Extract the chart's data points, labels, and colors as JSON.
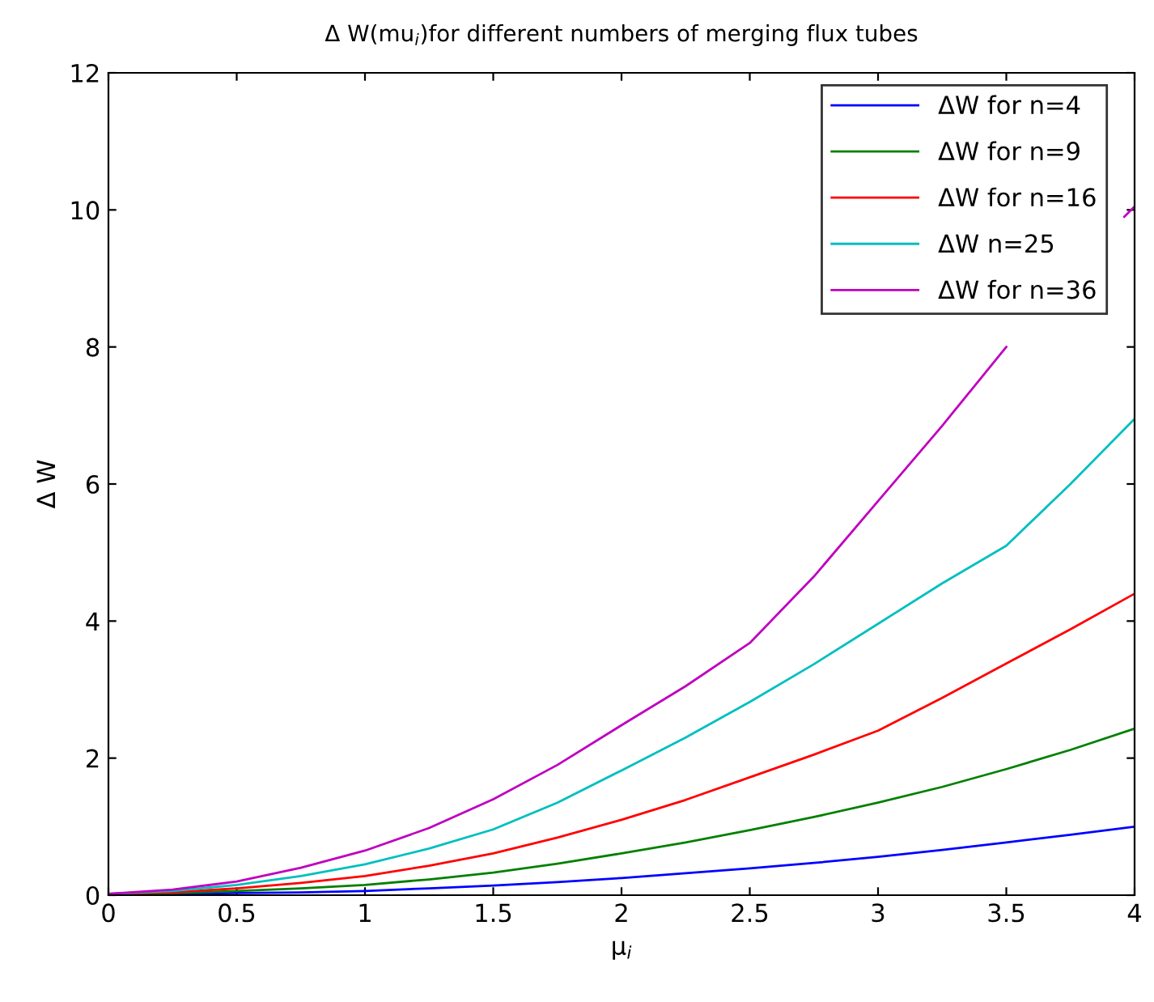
{
  "chart_data": {
    "type": "line",
    "title": "Δ W(mu$_{i}$)for different numbers of merging flux tubes",
    "xlabel": "μ$_{i}$",
    "ylabel": "Δ W",
    "x": [
      0,
      0.25,
      0.5,
      0.75,
      1,
      1.25,
      1.5,
      1.75,
      2,
      2.25,
      2.5,
      2.75,
      3,
      3.25,
      3.5,
      3.75,
      4
    ],
    "series": [
      {
        "name": "ΔW for n=4",
        "color": "#0000ff",
        "values": [
          0.02,
          0.02,
          0.03,
          0.04,
          0.06,
          0.1,
          0.14,
          0.19,
          0.25,
          0.32,
          0.39,
          0.47,
          0.56,
          0.66,
          0.77,
          0.88,
          1.0
        ]
      },
      {
        "name": "ΔW for n=9",
        "color": "#008000",
        "values": [
          0.02,
          0.03,
          0.06,
          0.1,
          0.15,
          0.23,
          0.33,
          0.46,
          0.61,
          0.77,
          0.95,
          1.14,
          1.35,
          1.58,
          1.84,
          2.12,
          2.43
        ]
      },
      {
        "name": "ΔW for n=16",
        "color": "#ff0000",
        "values": [
          0.02,
          0.04,
          0.1,
          0.18,
          0.28,
          0.43,
          0.61,
          0.84,
          1.1,
          1.39,
          1.72,
          2.05,
          2.4,
          2.88,
          3.38,
          3.88,
          4.4
        ]
      },
      {
        "name": "ΔW n=25",
        "color": "#00bfbf",
        "values": [
          0.02,
          0.06,
          0.15,
          0.28,
          0.45,
          0.68,
          0.96,
          1.35,
          1.82,
          2.3,
          2.82,
          3.37,
          3.96,
          4.55,
          5.1,
          6.0,
          6.95
        ]
      },
      {
        "name": "ΔW for n=36",
        "color": "#bf00bf",
        "x": [
          0,
          0.25,
          0.5,
          0.75,
          1,
          1.25,
          1.5,
          1.75,
          2,
          2.25,
          2.5,
          2.75,
          3,
          3.25,
          3.5,
          3.75,
          3.96,
          4
        ],
        "values": [
          0.02,
          0.08,
          0.2,
          0.4,
          0.65,
          0.98,
          1.4,
          1.9,
          2.48,
          3.05,
          3.68,
          4.65,
          5.75,
          6.85,
          8.0,
          null,
          9.9,
          10.05
        ]
      }
    ],
    "xlim": [
      0,
      4
    ],
    "ylim": [
      0,
      12
    ],
    "xticks": [
      0,
      0.5,
      1,
      1.5,
      2,
      2.5,
      3,
      3.5,
      4
    ],
    "yticks": [
      0,
      2,
      4,
      6,
      8,
      10,
      12
    ],
    "legend": "top right"
  }
}
